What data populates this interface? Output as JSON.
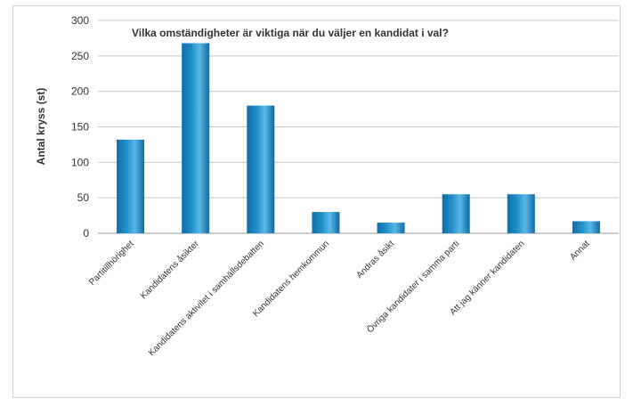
{
  "chart_data": {
    "type": "bar",
    "title": "Vilka omständigheter är viktiga när du väljer en kandidat i val?",
    "xlabel": "",
    "ylabel": "Antal kryss (st)",
    "ylim": [
      0,
      300
    ],
    "yticks": [
      0,
      50,
      100,
      150,
      200,
      250,
      300
    ],
    "grid": true,
    "legend": "none",
    "bar_color": "#1f8fc9",
    "categories": [
      "Partitillhörighet",
      "Kandidatens åsikter",
      "Kandidatens aktivitet i samhällsdebatten",
      "Kandidatens hemkommun",
      "Andras åsikt",
      "Övriga kandidater i samma parti",
      "Att jag känner kandidaten",
      "Annat"
    ],
    "values": [
      132,
      268,
      180,
      30,
      15,
      55,
      55,
      17
    ]
  }
}
